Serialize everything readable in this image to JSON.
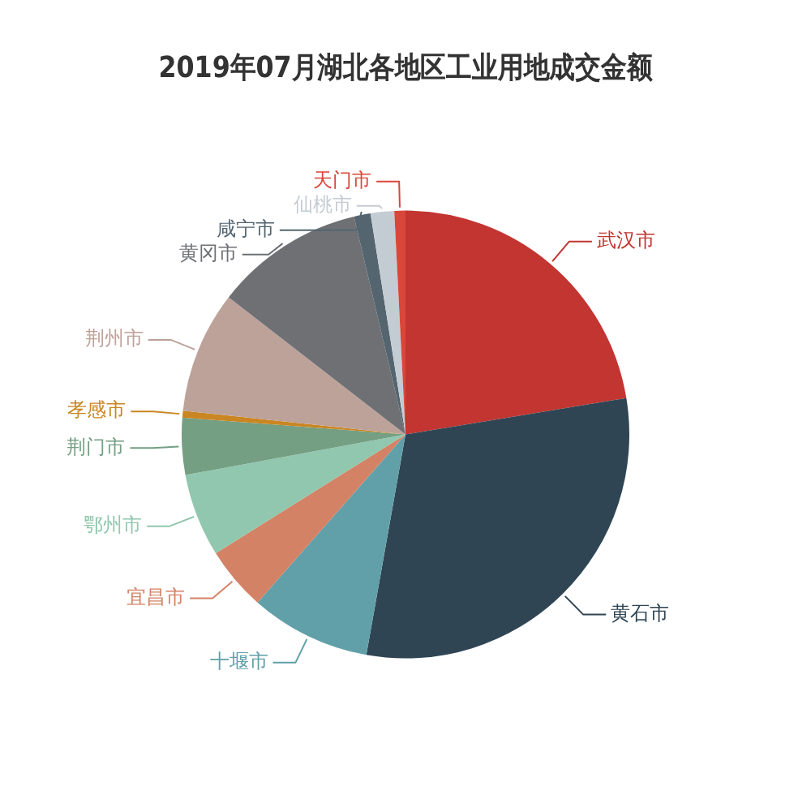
{
  "chart_data": {
    "type": "pie",
    "title": "2019年07月湖北各地区工业用地成交金额",
    "categories": [
      "武汉市",
      "黄石市",
      "十堰市",
      "宜昌市",
      "鄂州市",
      "荆门市",
      "孝感市",
      "荆州市",
      "黄冈市",
      "咸宁市",
      "仙桃市",
      "天门市"
    ],
    "values": [
      22.4,
      30.4,
      8.7,
      4.6,
      6.0,
      4.1,
      0.5,
      8.8,
      10.8,
      1.2,
      1.7,
      0.8
    ],
    "colors": [
      "#c23531",
      "#2f4554",
      "#61a0a8",
      "#d48265",
      "#91c7ae",
      "#749f83",
      "#ca8622",
      "#bda29a",
      "#6e7074",
      "#546570",
      "#c4ccd3",
      "#d9473a"
    ],
    "legend": false
  }
}
